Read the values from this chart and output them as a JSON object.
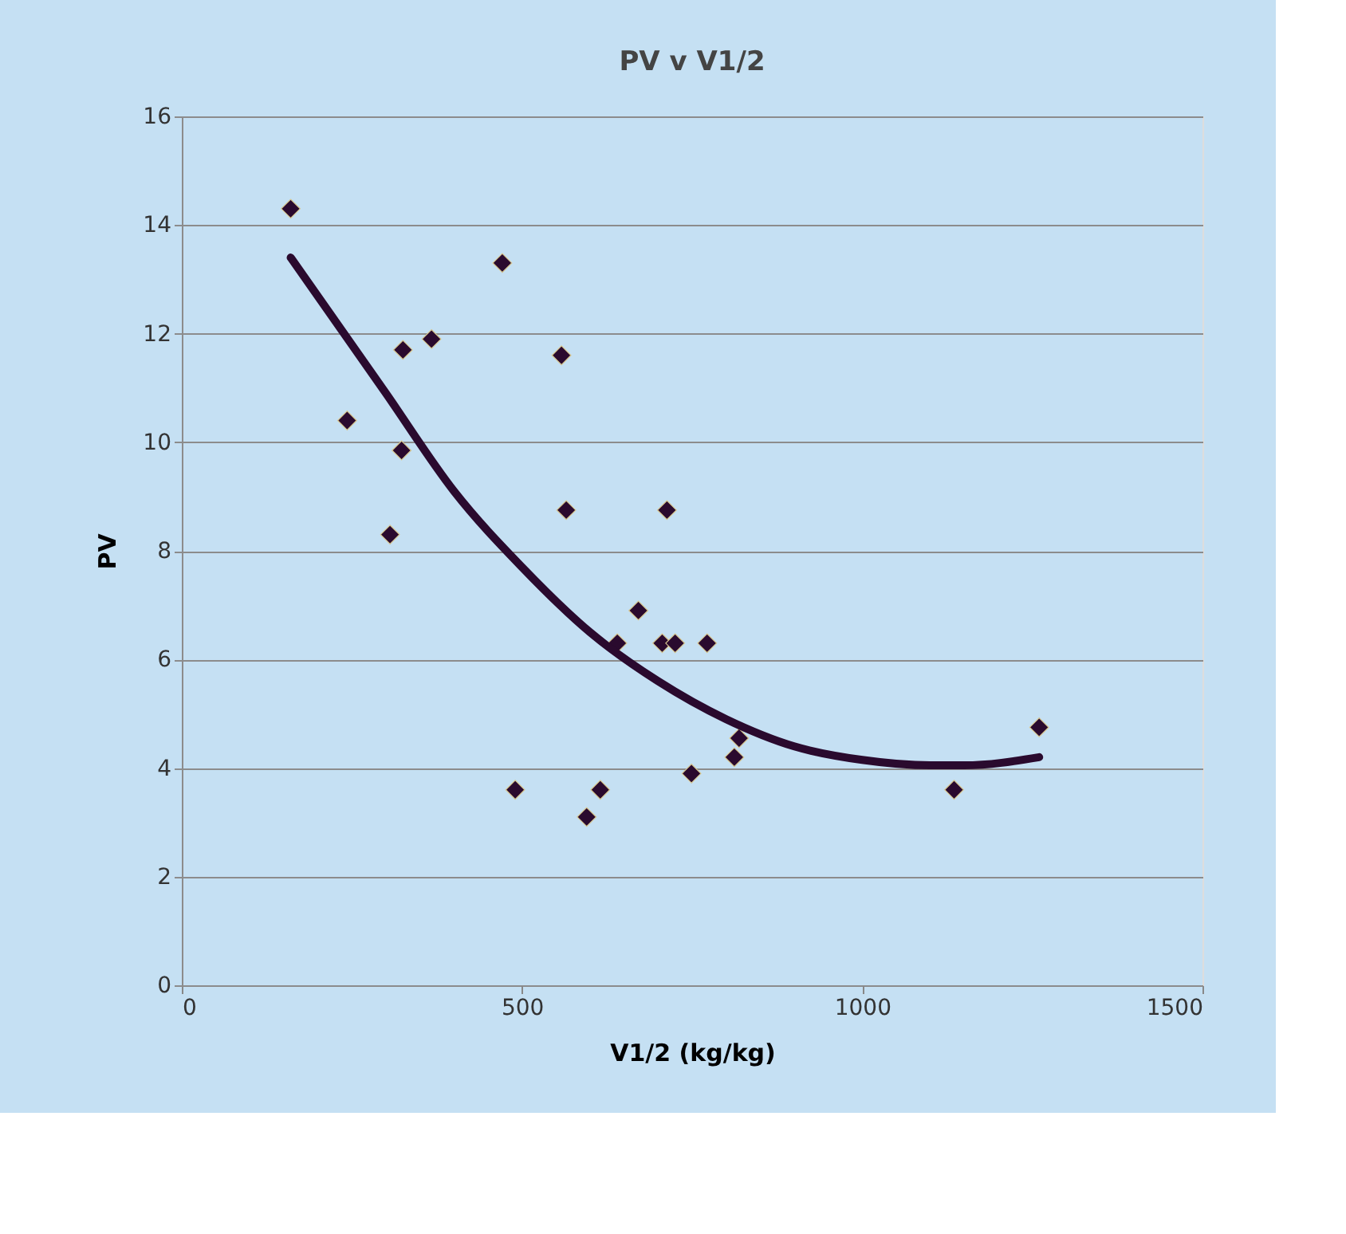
{
  "chart_data": {
    "type": "scatter",
    "title": "PV v V1/2",
    "xlabel": "V1/2 (kg/kg)",
    "ylabel": "PV",
    "xlim": [
      0,
      1500
    ],
    "xticks": [
      0,
      500,
      1000,
      1500
    ],
    "ylim": [
      0,
      16
    ],
    "yticks": [
      0,
      2,
      4,
      6,
      8,
      10,
      12,
      14,
      16
    ],
    "grid": "y",
    "series": [
      {
        "color": "#2a0a2e",
        "marker": "diamond",
        "x": [
          160,
          243,
          306,
          323,
          325,
          367,
          471,
          490,
          558,
          565,
          595,
          615,
          640,
          671,
          706,
          713,
          725,
          749,
          772,
          812,
          819,
          1135,
          1260
        ],
        "values": [
          14.3,
          10.4,
          8.3,
          9.85,
          11.7,
          11.9,
          13.3,
          3.6,
          11.6,
          8.75,
          3.1,
          3.6,
          6.3,
          6.9,
          6.3,
          8.75,
          6.3,
          3.9,
          6.3,
          4.2,
          4.55,
          3.6,
          4.75
        ]
      },
      {
        "type": "line",
        "color": "#2a0a2e",
        "marker": "none",
        "line_style": "solid",
        "x": [
          160,
          300,
          400,
          500,
          600,
          700,
          800,
          900,
          1000,
          1100,
          1150,
          1260
        ],
        "values": [
          13.4,
          10.9,
          9.1,
          7.7,
          6.5,
          5.6,
          4.9,
          4.4,
          4.15,
          4.05,
          4.05,
          4.2
        ]
      }
    ]
  }
}
